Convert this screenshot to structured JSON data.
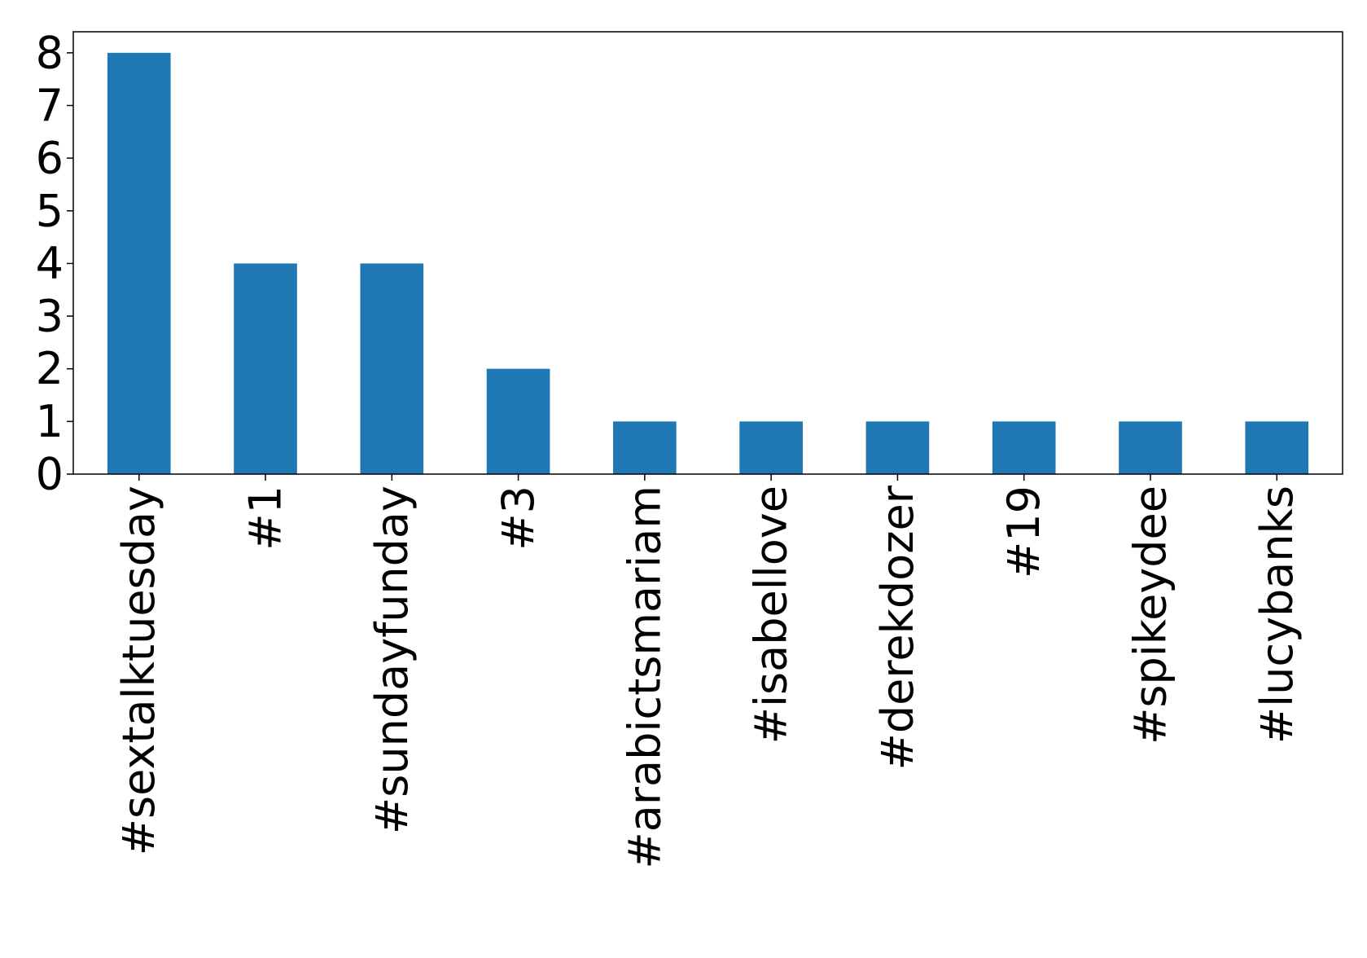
{
  "chart_data": {
    "type": "bar",
    "categories": [
      "#sextalktuesday",
      "#1",
      "#sundayfunday",
      "#3",
      "#arabictsmariam",
      "#isabellove",
      "#derekdozer",
      "#19",
      "#spikeydee",
      "#lucybanks"
    ],
    "values": [
      8,
      4,
      4,
      2,
      1,
      1,
      1,
      1,
      1,
      1
    ],
    "yticks": [
      "0",
      "1",
      "2",
      "3",
      "4",
      "5",
      "6",
      "7",
      "8"
    ],
    "ylim": [
      0,
      8.4
    ],
    "title": "",
    "xlabel": "",
    "ylabel": "",
    "bar_color": "#1f77b4",
    "grid": false,
    "legend": false
  }
}
